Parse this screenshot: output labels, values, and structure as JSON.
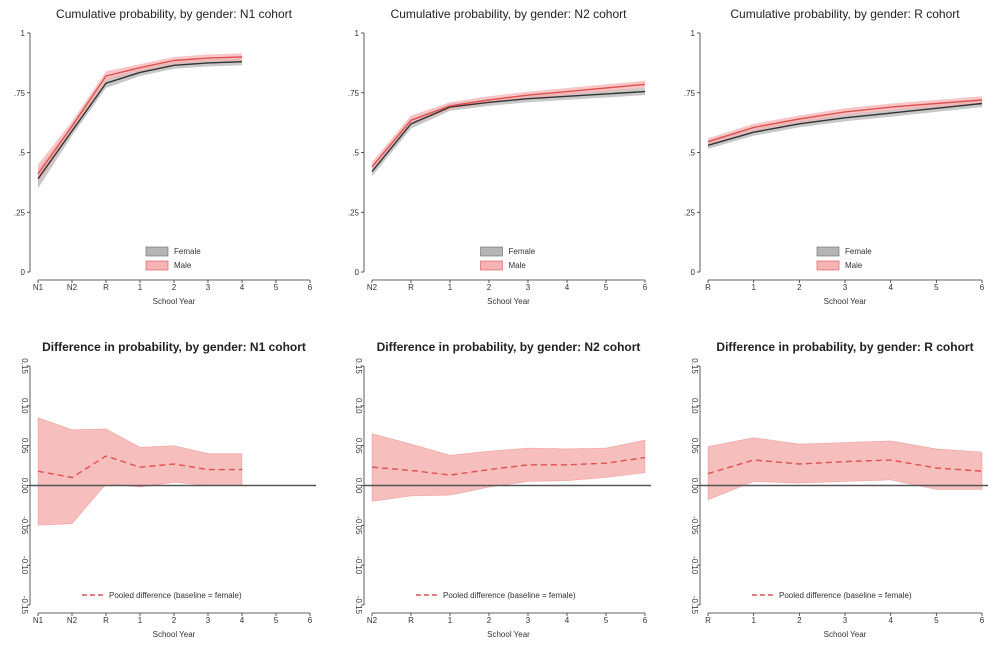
{
  "top_panels": [
    {
      "title": "Cumulative probability, by gender: N1 cohort",
      "xlabel": "School Year",
      "legend": {
        "female": "Female",
        "male": "Male"
      }
    },
    {
      "title": "Cumulative probability, by gender: N2 cohort",
      "xlabel": "School Year",
      "legend": {
        "female": "Female",
        "male": "Male"
      }
    },
    {
      "title": "Cumulative probability, by gender: R cohort",
      "xlabel": "School Year",
      "legend": {
        "female": "Female",
        "male": "Male"
      }
    }
  ],
  "bottom_panels": [
    {
      "title": "Difference in probability, by gender: N1 cohort",
      "xlabel": "School Year",
      "legend": {
        "diff": "Pooled difference (baseline = female)"
      }
    },
    {
      "title": "Difference in probability, by gender: N2 cohort",
      "xlabel": "School Year",
      "legend": {
        "diff": "Pooled difference (baseline = female)"
      }
    },
    {
      "title": "Difference in probability, by gender: R cohort",
      "xlabel": "School Year",
      "legend": {
        "diff": "Pooled difference (baseline = female)"
      }
    }
  ],
  "colors": {
    "female_line": "#333333",
    "female_band": "#b5b5b5",
    "male_line": "#e05050",
    "male_band": "#f6b3b3",
    "zero_line": "#555555"
  },
  "chart_data": [
    {
      "type": "line",
      "title": "Cumulative probability, by gender: N1 cohort",
      "xlabel": "School Year",
      "x_ticks": [
        "N1",
        "N2",
        "R",
        "1",
        "2",
        "3",
        "4",
        "5",
        "6"
      ],
      "y_ticks": [
        "0",
        ".25",
        ".5",
        ".75",
        "1"
      ],
      "ylim": [
        0,
        1
      ],
      "legend_position": "bottom-center",
      "series": [
        {
          "name": "Female",
          "x": [
            "N1",
            "N2",
            "R",
            "1",
            "2",
            "3",
            "4"
          ],
          "values": [
            0.39,
            0.59,
            0.79,
            0.835,
            0.865,
            0.875,
            0.88
          ],
          "ci_low": [
            0.35,
            0.57,
            0.77,
            0.82,
            0.85,
            0.86,
            0.865
          ],
          "ci_high": [
            0.43,
            0.61,
            0.81,
            0.85,
            0.88,
            0.89,
            0.895
          ]
        },
        {
          "name": "Male",
          "x": [
            "N1",
            "N2",
            "R",
            "1",
            "2",
            "3",
            "4"
          ],
          "values": [
            0.41,
            0.61,
            0.82,
            0.855,
            0.885,
            0.895,
            0.9
          ],
          "ci_low": [
            0.37,
            0.59,
            0.8,
            0.84,
            0.87,
            0.88,
            0.885
          ],
          "ci_high": [
            0.45,
            0.63,
            0.84,
            0.87,
            0.9,
            0.91,
            0.915
          ]
        }
      ]
    },
    {
      "type": "line",
      "title": "Cumulative probability, by gender: N2 cohort",
      "xlabel": "School Year",
      "x_ticks": [
        "N2",
        "R",
        "1",
        "2",
        "3",
        "4",
        "5",
        "6"
      ],
      "y_ticks": [
        "0",
        ".25",
        ".5",
        ".75",
        "1"
      ],
      "ylim": [
        0,
        1
      ],
      "legend_position": "bottom-center",
      "series": [
        {
          "name": "Female",
          "x": [
            "N2",
            "R",
            "1",
            "2",
            "3",
            "4",
            "5",
            "6"
          ],
          "values": [
            0.42,
            0.62,
            0.69,
            0.71,
            0.725,
            0.735,
            0.745,
            0.755
          ],
          "ci_low": [
            0.4,
            0.6,
            0.675,
            0.695,
            0.71,
            0.72,
            0.73,
            0.74
          ],
          "ci_high": [
            0.44,
            0.64,
            0.705,
            0.725,
            0.74,
            0.75,
            0.76,
            0.77
          ]
        },
        {
          "name": "Male",
          "x": [
            "N2",
            "R",
            "1",
            "2",
            "3",
            "4",
            "5",
            "6"
          ],
          "values": [
            0.44,
            0.635,
            0.695,
            0.72,
            0.74,
            0.755,
            0.77,
            0.785
          ],
          "ci_low": [
            0.42,
            0.615,
            0.68,
            0.705,
            0.725,
            0.74,
            0.755,
            0.77
          ],
          "ci_high": [
            0.46,
            0.655,
            0.71,
            0.735,
            0.755,
            0.77,
            0.785,
            0.8
          ]
        }
      ]
    },
    {
      "type": "line",
      "title": "Cumulative probability, by gender: R cohort",
      "xlabel": "School Year",
      "x_ticks": [
        "R",
        "1",
        "2",
        "3",
        "4",
        "5",
        "6"
      ],
      "y_ticks": [
        "0",
        ".25",
        ".5",
        ".75",
        "1"
      ],
      "ylim": [
        0,
        1
      ],
      "legend_position": "bottom-center",
      "series": [
        {
          "name": "Female",
          "x": [
            "R",
            "1",
            "2",
            "3",
            "4",
            "5",
            "6"
          ],
          "values": [
            0.53,
            0.585,
            0.62,
            0.645,
            0.665,
            0.685,
            0.705
          ],
          "ci_low": [
            0.515,
            0.57,
            0.605,
            0.63,
            0.65,
            0.67,
            0.69
          ],
          "ci_high": [
            0.545,
            0.6,
            0.635,
            0.66,
            0.68,
            0.7,
            0.72
          ]
        },
        {
          "name": "Male",
          "x": [
            "R",
            "1",
            "2",
            "3",
            "4",
            "5",
            "6"
          ],
          "values": [
            0.545,
            0.605,
            0.64,
            0.67,
            0.69,
            0.705,
            0.72
          ],
          "ci_low": [
            0.53,
            0.59,
            0.625,
            0.655,
            0.675,
            0.69,
            0.705
          ],
          "ci_high": [
            0.56,
            0.62,
            0.655,
            0.685,
            0.705,
            0.72,
            0.735
          ]
        }
      ]
    },
    {
      "type": "line",
      "title": "Difference in probability, by gender: N1 cohort",
      "xlabel": "School Year",
      "x_ticks": [
        "N1",
        "N2",
        "R",
        "1",
        "2",
        "3",
        "4",
        "5",
        "6"
      ],
      "y_ticks": [
        "-0.15",
        "-0.10",
        "-0.05",
        "0.00",
        "0.05",
        "0.10",
        "0.15"
      ],
      "ylim": [
        -0.15,
        0.15
      ],
      "legend_position": "bottom-center",
      "series": [
        {
          "name": "Pooled difference (baseline = female)",
          "x": [
            "N1",
            "N2",
            "R",
            "1",
            "2",
            "3",
            "4"
          ],
          "values": [
            0.018,
            0.01,
            0.037,
            0.023,
            0.027,
            0.02,
            0.02
          ],
          "ci_low": [
            -0.05,
            -0.048,
            0.002,
            -0.002,
            0.004,
            0.0,
            0.0
          ],
          "ci_high": [
            0.085,
            0.07,
            0.071,
            0.048,
            0.05,
            0.04,
            0.04
          ]
        }
      ]
    },
    {
      "type": "line",
      "title": "Difference in probability, by gender: N2 cohort",
      "xlabel": "School Year",
      "x_ticks": [
        "N2",
        "R",
        "1",
        "2",
        "3",
        "4",
        "5",
        "6"
      ],
      "y_ticks": [
        "-0.15",
        "-0.10",
        "-0.05",
        "0.00",
        "0.05",
        "0.10",
        "0.15"
      ],
      "ylim": [
        -0.15,
        0.15
      ],
      "legend_position": "bottom-center",
      "series": [
        {
          "name": "Pooled difference (baseline = female)",
          "x": [
            "N2",
            "R",
            "1",
            "2",
            "3",
            "4",
            "5",
            "6"
          ],
          "values": [
            0.023,
            0.019,
            0.013,
            0.02,
            0.026,
            0.026,
            0.028,
            0.035
          ],
          "ci_low": [
            -0.02,
            -0.013,
            -0.012,
            -0.002,
            0.005,
            0.006,
            0.01,
            0.016
          ],
          "ci_high": [
            0.065,
            0.052,
            0.038,
            0.043,
            0.047,
            0.046,
            0.047,
            0.057
          ]
        }
      ]
    },
    {
      "type": "line",
      "title": "Difference in probability, by gender: R cohort",
      "xlabel": "School Year",
      "x_ticks": [
        "R",
        "1",
        "2",
        "3",
        "4",
        "5",
        "6"
      ],
      "y_ticks": [
        "-0.15",
        "-0.10",
        "-0.05",
        "0.00",
        "0.05",
        "0.10",
        "0.15"
      ],
      "ylim": [
        -0.15,
        0.15
      ],
      "legend_position": "bottom-center",
      "series": [
        {
          "name": "Pooled difference (baseline = female)",
          "x": [
            "R",
            "1",
            "2",
            "3",
            "4",
            "5",
            "6"
          ],
          "values": [
            0.015,
            0.032,
            0.027,
            0.03,
            0.032,
            0.022,
            0.018
          ],
          "ci_low": [
            -0.018,
            0.005,
            0.003,
            0.005,
            0.007,
            -0.005,
            -0.005
          ],
          "ci_high": [
            0.049,
            0.06,
            0.052,
            0.054,
            0.056,
            0.046,
            0.042
          ]
        }
      ]
    }
  ]
}
